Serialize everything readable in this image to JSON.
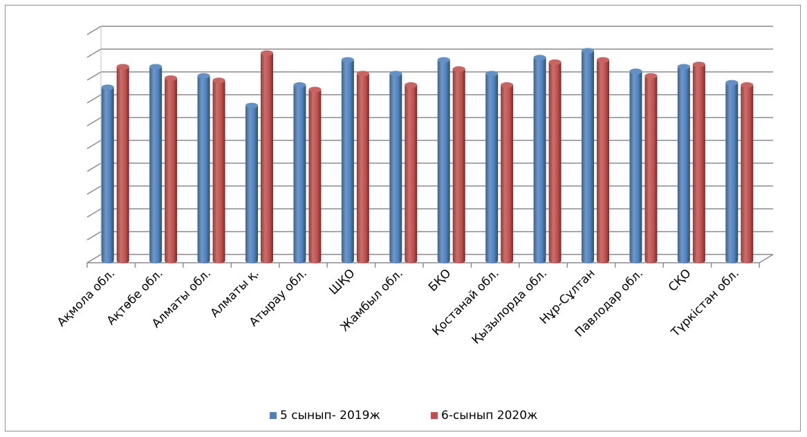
{
  "chart_data": {
    "type": "bar",
    "title": "",
    "xlabel": "",
    "ylabel": "",
    "ylim": [
      0,
      10
    ],
    "y_gridlines": true,
    "style": "3d-cylinder",
    "legend_position": "bottom",
    "categories": [
      "Ақмола обл.",
      "Ақтөбе обл.",
      "Алматы обл.",
      "Алматы қ.",
      "Атырау обл.",
      "ШҚО",
      "Жамбыл обл.",
      "БҚО",
      "Қостанай обл.",
      "Қызылорда обл.",
      "Нұр-Сұлтан",
      "Павлодар обл.",
      "СҚО",
      "Түркістан обл."
    ],
    "series": [
      {
        "name": "5 сынып- 2019ж",
        "color": "#4f81bd",
        "values": [
          7.6,
          8.5,
          8.1,
          6.8,
          7.7,
          8.8,
          8.2,
          8.8,
          8.2,
          8.9,
          9.2,
          8.3,
          8.5,
          7.8
        ]
      },
      {
        "name": "6-сынып 2020ж",
        "color": "#c0504d",
        "values": [
          8.5,
          8.0,
          7.9,
          9.1,
          7.5,
          8.2,
          7.7,
          8.4,
          7.7,
          8.7,
          8.8,
          8.1,
          8.6,
          7.7
        ]
      }
    ]
  }
}
